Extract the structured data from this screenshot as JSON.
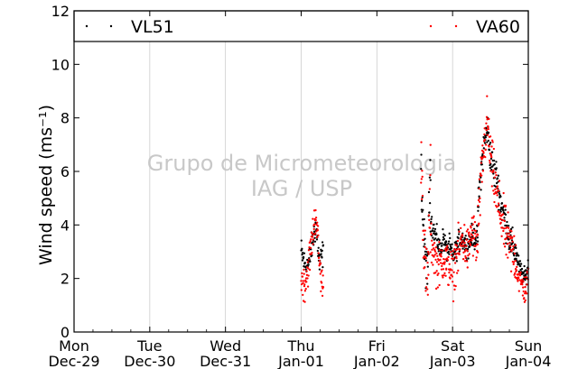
{
  "chart_data": {
    "type": "scatter",
    "ylabel": "Wind speed (ms⁻¹)",
    "ylim": [
      0,
      12
    ],
    "yticks": [
      0,
      2,
      4,
      6,
      8,
      10,
      12
    ],
    "xlim": [
      "2014-12-29 00:00",
      "2015-01-04 00:00"
    ],
    "xticks": [
      {
        "day": "Mon",
        "date": "Dec-29"
      },
      {
        "day": "Tue",
        "date": "Dec-30"
      },
      {
        "day": "Wed",
        "date": "Dec-31"
      },
      {
        "day": "Thu",
        "date": "Jan-01"
      },
      {
        "day": "Fri",
        "date": "Jan-02"
      },
      {
        "day": "Sat",
        "date": "Jan-03"
      },
      {
        "day": "Sun",
        "date": "Jan-04"
      }
    ],
    "grid": "vertical",
    "legend": "top, inside plot band",
    "watermark": [
      "Grupo de Micrometeorologia",
      "IAG / USP"
    ],
    "series": [
      {
        "name": "VL51",
        "color": "#000000",
        "segments": [
          {
            "start": "2015-01-01 00:00",
            "end": "2015-01-01 07:00",
            "mean": [
              3.0,
              2.5,
              2.5,
              3.3,
              4.0,
              2.5,
              3.0
            ],
            "spread": 0.8
          },
          {
            "start": "2015-01-02 14:00",
            "end": "2015-01-02 17:00",
            "mean": [
              6.0,
              3.2,
              2.0,
              6.5
            ],
            "spread": 1.4
          },
          {
            "start": "2015-01-02 17:00",
            "end": "2015-01-02 22:00",
            "mean": [
              4.2,
              3.8,
              3.5,
              3.0,
              3.5,
              3.2
            ],
            "spread": 0.6
          },
          {
            "start": "2015-01-02 22:00",
            "end": "2015-01-03 08:00",
            "mean": [
              3.0,
              3.2,
              2.8,
              3.0,
              3.4,
              3.5,
              3.3,
              3.2,
              3.6,
              3.5,
              3.6
            ],
            "spread": 0.6
          },
          {
            "start": "2015-01-03 08:00",
            "end": "2015-01-03 20:00",
            "mean": [
              4.5,
              6.0,
              7.0,
              7.6,
              6.6,
              6.0,
              5.8,
              5.0,
              4.5,
              4.0,
              3.5,
              3.2,
              3.0
            ],
            "spread": 0.9
          },
          {
            "start": "2015-01-03 20:00",
            "end": "2015-01-04 00:00",
            "mean": [
              3.0,
              2.5,
              2.2,
              2.0,
              2.5
            ],
            "spread": 0.5
          }
        ]
      },
      {
        "name": "VA60",
        "color": "#ff0000",
        "segments": [
          {
            "start": "2015-01-01 00:00",
            "end": "2015-01-01 07:00",
            "mean": [
              2.0,
              1.8,
              2.5,
              3.5,
              4.5,
              2.5,
              1.5
            ],
            "spread": 1.0
          },
          {
            "start": "2015-01-02 14:00",
            "end": "2015-01-02 17:00",
            "mean": [
              7.0,
              3.0,
              1.5,
              5.5
            ],
            "spread": 2.0
          },
          {
            "start": "2015-01-02 17:00",
            "end": "2015-01-02 22:00",
            "mean": [
              3.5,
              3.0,
              2.5,
              2.5,
              2.8,
              2.5
            ],
            "spread": 1.2
          },
          {
            "start": "2015-01-02 22:00",
            "end": "2015-01-03 08:00",
            "mean": [
              2.5,
              2.5,
              2.0,
              2.8,
              3.0,
              3.5,
              3.2,
              3.0,
              3.8,
              3.5,
              3.0
            ],
            "spread": 1.3
          },
          {
            "start": "2015-01-03 08:00",
            "end": "2015-01-03 20:00",
            "mean": [
              4.0,
              5.5,
              7.0,
              7.8,
              6.5,
              5.8,
              5.0,
              4.5,
              4.0,
              3.6,
              3.2,
              3.0,
              2.8
            ],
            "spread": 1.5
          },
          {
            "start": "2015-01-03 20:00",
            "end": "2015-01-04 00:00",
            "mean": [
              2.5,
              2.0,
              1.8,
              1.5,
              2.0
            ],
            "spread": 0.8
          }
        ]
      }
    ]
  }
}
